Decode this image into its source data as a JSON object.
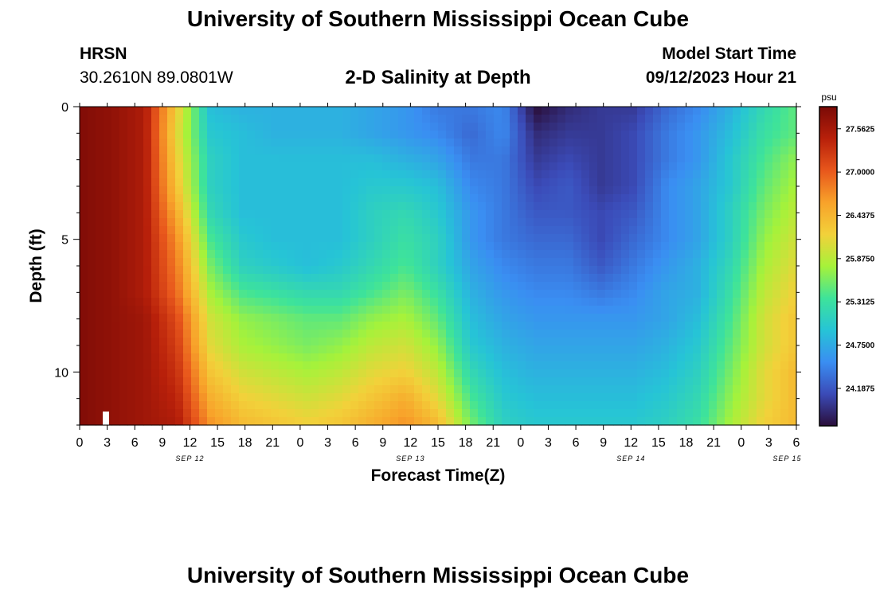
{
  "header": {
    "title": "University of Southern Mississippi Ocean Cube",
    "station": "HRSN",
    "coords": "30.2610N  89.0801W",
    "subtitle": "2-D Salinity at Depth",
    "model_start_label": "Model Start Time",
    "model_start_time": "09/12/2023 Hour 21"
  },
  "footer": {
    "title": "University of Southern Mississippi Ocean Cube"
  },
  "colors": {
    "scale": [
      "#2a0e3a",
      "#3b4bb8",
      "#3a8ef2",
      "#26c4d6",
      "#3ee39a",
      "#a6f23a",
      "#f2d13a",
      "#f8a22a",
      "#e8571c",
      "#b8200a",
      "#7a0a06"
    ]
  },
  "chart_data": {
    "type": "heatmap",
    "xlabel": "Forecast Time(Z)",
    "ylabel": "Depth (ft)",
    "x_tick_labels": [
      "0",
      "3",
      "6",
      "9",
      "12",
      "15",
      "18",
      "21",
      "0",
      "3",
      "6",
      "9",
      "12",
      "15",
      "18",
      "21",
      "0",
      "3",
      "6",
      "9",
      "12",
      "15",
      "18",
      "21",
      "0",
      "3",
      "6"
    ],
    "date_labels": [
      "SEP 12",
      "SEP 13",
      "SEP 14",
      "SEP 15"
    ],
    "y_tick_labels": [
      "0",
      "5",
      "10"
    ],
    "ylim": [
      0,
      12
    ],
    "xlim_hours": [
      0,
      78
    ],
    "colorbar": {
      "unit": "psu",
      "labels": [
        "27.5625",
        "27.0000",
        "26.4375",
        "25.8750",
        "25.3125",
        "24.7500",
        "24.1875"
      ],
      "range": [
        23.7,
        27.85
      ]
    },
    "salinity_rows_psu": [
      [
        27.8,
        27.7,
        27.5,
        26.2,
        24.9,
        24.8,
        24.8,
        24.8,
        24.8,
        24.7,
        24.6,
        24.4,
        24.4,
        24.5,
        23.7,
        23.9,
        24.0,
        24.0,
        24.3,
        24.5,
        24.8,
        25.2,
        25.5
      ],
      [
        27.8,
        27.7,
        27.5,
        26.1,
        25.0,
        24.9,
        24.8,
        24.8,
        24.8,
        24.7,
        24.6,
        24.5,
        24.3,
        24.5,
        23.9,
        24.0,
        24.0,
        24.1,
        24.4,
        24.6,
        24.9,
        25.3,
        25.5
      ],
      [
        27.8,
        27.7,
        27.5,
        26.2,
        25.1,
        24.9,
        24.9,
        24.9,
        24.9,
        24.9,
        24.8,
        24.7,
        24.4,
        24.4,
        24.0,
        24.1,
        24.0,
        24.1,
        24.4,
        24.6,
        25.0,
        25.4,
        25.7
      ],
      [
        27.8,
        27.7,
        27.5,
        26.3,
        25.1,
        24.9,
        24.9,
        24.9,
        24.9,
        25.0,
        25.0,
        24.9,
        24.5,
        24.4,
        24.1,
        24.2,
        24.0,
        24.1,
        24.5,
        24.7,
        25.0,
        25.5,
        25.8
      ],
      [
        27.8,
        27.7,
        27.5,
        26.5,
        25.2,
        24.9,
        24.9,
        24.9,
        24.9,
        25.1,
        25.2,
        25.0,
        24.6,
        24.4,
        24.2,
        24.2,
        24.1,
        24.2,
        24.5,
        24.7,
        25.1,
        25.6,
        25.9
      ],
      [
        27.8,
        27.7,
        27.5,
        26.7,
        25.4,
        25.0,
        24.9,
        24.9,
        24.9,
        25.1,
        25.3,
        25.1,
        24.6,
        24.4,
        24.3,
        24.3,
        24.1,
        24.3,
        24.5,
        24.7,
        25.1,
        25.7,
        26.0
      ],
      [
        27.8,
        27.7,
        27.5,
        26.8,
        25.6,
        25.1,
        25.0,
        24.9,
        25.0,
        25.2,
        25.4,
        25.1,
        24.7,
        24.5,
        24.4,
        24.4,
        24.2,
        24.4,
        24.6,
        24.8,
        25.2,
        25.8,
        26.1
      ],
      [
        27.8,
        27.7,
        27.5,
        26.9,
        25.8,
        25.4,
        25.3,
        25.2,
        25.2,
        25.4,
        25.6,
        25.3,
        24.8,
        24.6,
        24.5,
        24.5,
        24.4,
        24.5,
        24.7,
        24.8,
        25.3,
        25.9,
        26.2
      ],
      [
        27.8,
        27.7,
        27.6,
        27.1,
        26.0,
        25.7,
        25.6,
        25.5,
        25.5,
        25.7,
        25.8,
        25.5,
        24.9,
        24.7,
        24.6,
        24.6,
        24.6,
        24.6,
        24.7,
        24.9,
        25.4,
        26.0,
        26.3
      ],
      [
        27.8,
        27.7,
        27.6,
        27.2,
        26.1,
        25.8,
        25.7,
        25.6,
        25.7,
        25.9,
        26.0,
        25.7,
        25.0,
        24.8,
        24.7,
        24.7,
        24.7,
        24.7,
        24.8,
        25.0,
        25.5,
        26.0,
        26.3
      ],
      [
        27.8,
        27.7,
        27.6,
        27.3,
        26.3,
        26.0,
        25.9,
        25.8,
        25.9,
        26.1,
        26.2,
        25.9,
        25.2,
        24.9,
        24.8,
        24.8,
        24.8,
        24.8,
        24.9,
        25.1,
        25.6,
        26.1,
        26.4
      ],
      [
        27.8,
        27.7,
        27.6,
        27.4,
        26.5,
        26.2,
        26.1,
        26.0,
        26.1,
        26.3,
        26.5,
        26.1,
        25.4,
        25.0,
        24.9,
        24.9,
        24.9,
        24.9,
        25.0,
        25.2,
        25.7,
        26.1,
        26.4
      ],
      [
        27.8,
        27.7,
        27.6,
        27.5,
        26.7,
        26.4,
        26.3,
        26.2,
        26.3,
        26.5,
        26.7,
        26.4,
        25.6,
        25.1,
        25.0,
        25.0,
        25.0,
        25.0,
        25.1,
        25.3,
        25.8,
        26.2,
        26.4
      ]
    ]
  }
}
